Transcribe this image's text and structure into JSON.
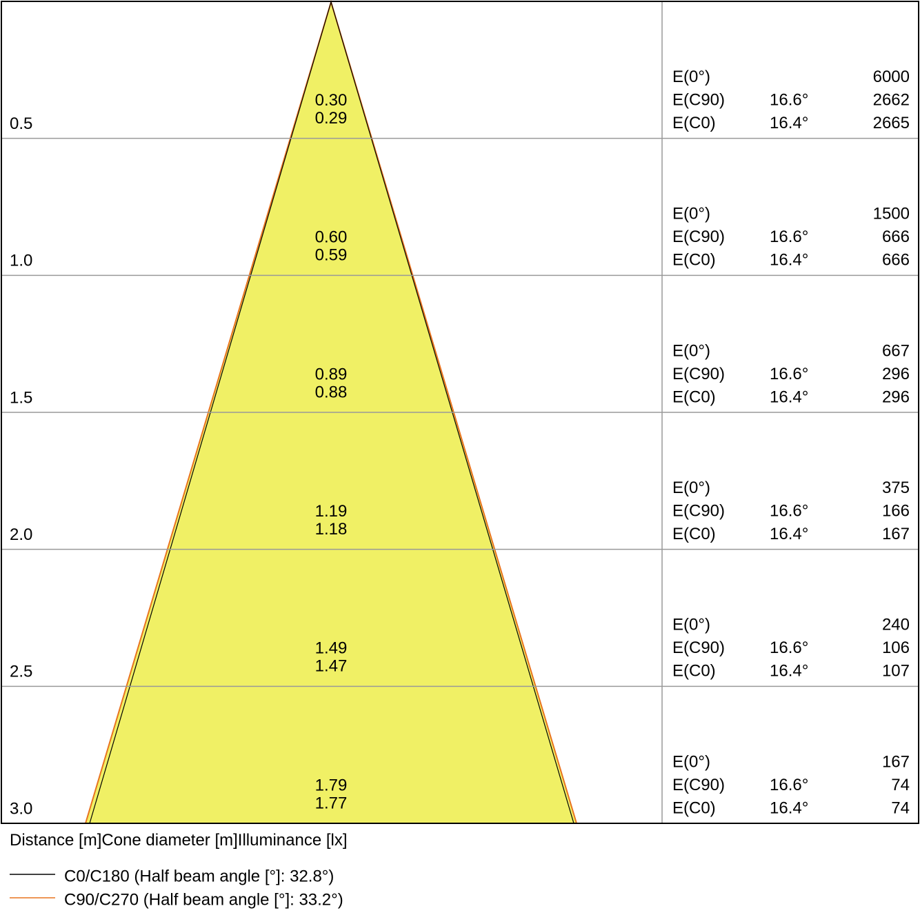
{
  "rows": [
    {
      "distance": "0.5",
      "diameter_1": "0.30",
      "diameter_2": "0.29",
      "illuminance": [
        {
          "label": "E(0°)",
          "value": "6000"
        },
        {
          "label": "E(C90)",
          "angle": "16.6°",
          "value": "2662"
        },
        {
          "label": "E(C0)",
          "angle": "16.4°",
          "value": "2665"
        }
      ]
    },
    {
      "distance": "1.0",
      "diameter_1": "0.60",
      "diameter_2": "0.59",
      "illuminance": [
        {
          "label": "E(0°)",
          "value": "1500"
        },
        {
          "label": "E(C90)",
          "angle": "16.6°",
          "value": "666"
        },
        {
          "label": "E(C0)",
          "angle": "16.4°",
          "value": "666"
        }
      ]
    },
    {
      "distance": "1.5",
      "diameter_1": "0.89",
      "diameter_2": "0.88",
      "illuminance": [
        {
          "label": "E(0°)",
          "value": "667"
        },
        {
          "label": "E(C90)",
          "angle": "16.6°",
          "value": "296"
        },
        {
          "label": "E(C0)",
          "angle": "16.4°",
          "value": "296"
        }
      ]
    },
    {
      "distance": "2.0",
      "diameter_1": "1.19",
      "diameter_2": "1.18",
      "illuminance": [
        {
          "label": "E(0°)",
          "value": "375"
        },
        {
          "label": "E(C90)",
          "angle": "16.6°",
          "value": "166"
        },
        {
          "label": "E(C0)",
          "angle": "16.4°",
          "value": "167"
        }
      ]
    },
    {
      "distance": "2.5",
      "diameter_1": "1.49",
      "diameter_2": "1.47",
      "illuminance": [
        {
          "label": "E(0°)",
          "value": "240"
        },
        {
          "label": "E(C90)",
          "angle": "16.6°",
          "value": "106"
        },
        {
          "label": "E(C0)",
          "angle": "16.4°",
          "value": "107"
        }
      ]
    },
    {
      "distance": "3.0",
      "diameter_1": "1.79",
      "diameter_2": "1.77",
      "illuminance": [
        {
          "label": "E(0°)",
          "value": "167"
        },
        {
          "label": "E(C90)",
          "angle": "16.6°",
          "value": "74"
        },
        {
          "label": "E(C0)",
          "angle": "16.4°",
          "value": "74"
        }
      ]
    }
  ],
  "footer": {
    "labels": [
      "Distance [m]",
      "Cone diameter [m]",
      "Illuminance [lx]"
    ]
  },
  "legend": [
    {
      "label": "C0/C180 (Half beam angle [°]: 32.8°)",
      "color": "#000000"
    },
    {
      "label": "C90/C270 (Half beam angle [°]: 33.2°)",
      "color": "#e8731f"
    }
  ]
}
